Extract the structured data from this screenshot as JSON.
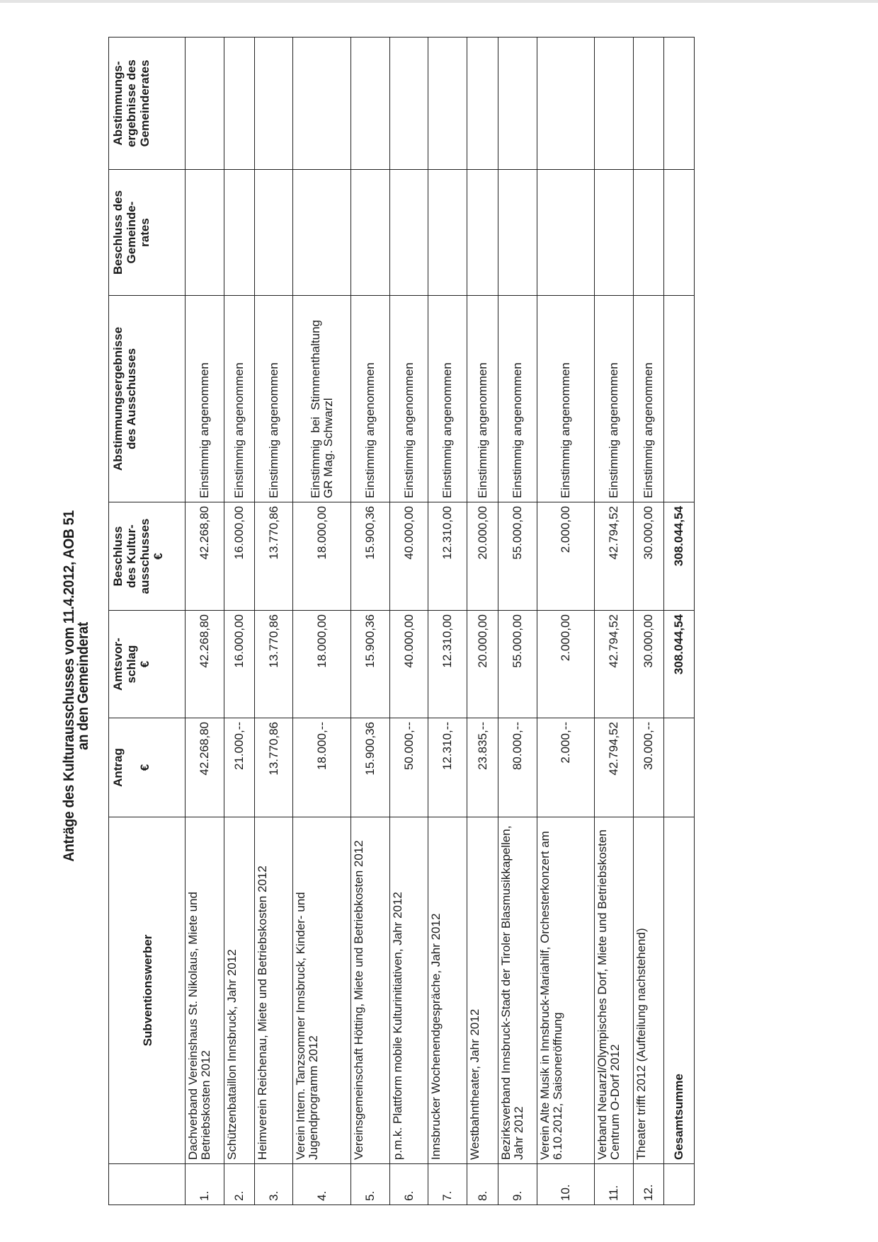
{
  "title": {
    "line1": "Anträge des Kulturausschusses vom 11.4.2012, AOB 51",
    "line2": "an den Gemeinderat"
  },
  "headers": {
    "nr": "",
    "subventionswerber": "Subventionswerber",
    "antrag": "Antrag",
    "antrag_unit": "€",
    "amtsvorschlag_1": "Amtsvor-",
    "amtsvorschlag_2": "schlag",
    "amtsvorschlag_unit": "€",
    "beschluss_kultur_1": "Beschluss",
    "beschluss_kultur_2": "des Kultur-",
    "beschluss_kultur_3": "ausschusses",
    "beschluss_kultur_unit": "€",
    "abstimmung_ausschuss_1": "Abstimmungsergebnisse",
    "abstimmung_ausschuss_2": "des Ausschusses",
    "beschluss_gr_1": "Beschluss des",
    "beschluss_gr_2": "Gemeinde-",
    "beschluss_gr_3": "rates",
    "abstimmung_gr_1": "Abstimmungs-",
    "abstimmung_gr_2": "ergebnisse des",
    "abstimmung_gr_3": "Gemeinderates"
  },
  "rows": [
    {
      "nr": "1.",
      "name": "Dachverband Vereinshaus St. Nikolaus, Miete und Betriebskosten 2012",
      "antrag": "42.268,80",
      "amtsvorschlag": "42.268,80",
      "beschluss": "42.268,80",
      "abstimmung": "Einstimmig angenommen",
      "beschluss_gr": "",
      "abstimmung_gr": ""
    },
    {
      "nr": "2.",
      "name": "Schützenbataillon Innsbruck, Jahr 2012",
      "antrag": "21.000,--",
      "amtsvorschlag": "16.000,00",
      "beschluss": "16.000,00",
      "abstimmung": "Einstimmig angenommen",
      "beschluss_gr": "",
      "abstimmung_gr": ""
    },
    {
      "nr": "3.",
      "name": "Heimverein Reichenau, Miete und Betriebskosten 2012",
      "antrag": "13.770,86",
      "amtsvorschlag": "13.770,86",
      "beschluss": "13.770,86",
      "abstimmung": "Einstimmig angenommen",
      "beschluss_gr": "",
      "abstimmung_gr": ""
    },
    {
      "nr": "4.",
      "name": "Verein Intern. Tanzsommer Innsbruck, Kinder- und Jugendprogramm 2012",
      "antrag": "18.000,--",
      "amtsvorschlag": "18.000,00",
      "beschluss": "18.000,00",
      "abstimmung": "Einstimmig bei Stimmenthaltung GR Mag. Schwarzl",
      "beschluss_gr": "",
      "abstimmung_gr": ""
    },
    {
      "nr": "5.",
      "name": "Vereinsgemeinschaft Hötting, Miete und Betriebkosten 2012",
      "antrag": "15.900,36",
      "amtsvorschlag": "15.900,36",
      "beschluss": "15.900,36",
      "abstimmung": "Einstimmig angenommen",
      "beschluss_gr": "",
      "abstimmung_gr": ""
    },
    {
      "nr": "6.",
      "name": "p.m.k. Plattform mobile Kulturinitiativen, Jahr 2012",
      "antrag": "50.000,--",
      "amtsvorschlag": "40.000,00",
      "beschluss": "40.000,00",
      "abstimmung": "Einstimmig angenommen",
      "beschluss_gr": "",
      "abstimmung_gr": ""
    },
    {
      "nr": "7.",
      "name": "Innsbrucker Wochenendgespräche, Jahr 2012",
      "antrag": "12.310,--",
      "amtsvorschlag": "12.310,00",
      "beschluss": "12.310,00",
      "abstimmung": "Einstimmig angenommen",
      "beschluss_gr": "",
      "abstimmung_gr": ""
    },
    {
      "nr": "8.",
      "name": "Westbahntheater, Jahr 2012",
      "antrag": "23.835,--",
      "amtsvorschlag": "20.000,00",
      "beschluss": "20.000,00",
      "abstimmung": "Einstimmig angenommen",
      "beschluss_gr": "",
      "abstimmung_gr": ""
    },
    {
      "nr": "9.",
      "name": "Bezirksverband Innsbruck-Stadt der Tiroler Blasmusikkapellen, Jahr 2012",
      "antrag": "80.000,--",
      "amtsvorschlag": "55.000,00",
      "beschluss": "55.000,00",
      "abstimmung": "Einstimmig angenommen",
      "beschluss_gr": "",
      "abstimmung_gr": ""
    },
    {
      "nr": "10.",
      "name": "Verein Alte Musik in Innsbruck-Mariahilf, Orchesterkonzert am 6.10.2012, Saisoneröffnung",
      "antrag": "2.000,--",
      "amtsvorschlag": "2.000,00",
      "beschluss": "2.000,00",
      "abstimmung": "Einstimmig angenommen",
      "beschluss_gr": "",
      "abstimmung_gr": ""
    },
    {
      "nr": "11.",
      "name": "Verband Neuarzl/Olympisches Dorf, Miete und Betriebskosten Centrum O-Dorf 2012",
      "antrag": "42.794,52",
      "amtsvorschlag": "42.794,52",
      "beschluss": "42.794,52",
      "abstimmung": "Einstimmig angenommen",
      "beschluss_gr": "",
      "abstimmung_gr": ""
    },
    {
      "nr": "12.",
      "name": "Theater trifft 2012 (Aufteilung nachstehend)",
      "antrag": "30.000,--",
      "amtsvorschlag": "30.000,00",
      "beschluss": "30.000,00",
      "abstimmung": "Einstimmig angenommen",
      "beschluss_gr": "",
      "abstimmung_gr": ""
    }
  ],
  "total": {
    "label": "Gesamtsumme",
    "antrag": "",
    "amtsvorschlag": "308.044,54",
    "beschluss": "308.044,54"
  }
}
